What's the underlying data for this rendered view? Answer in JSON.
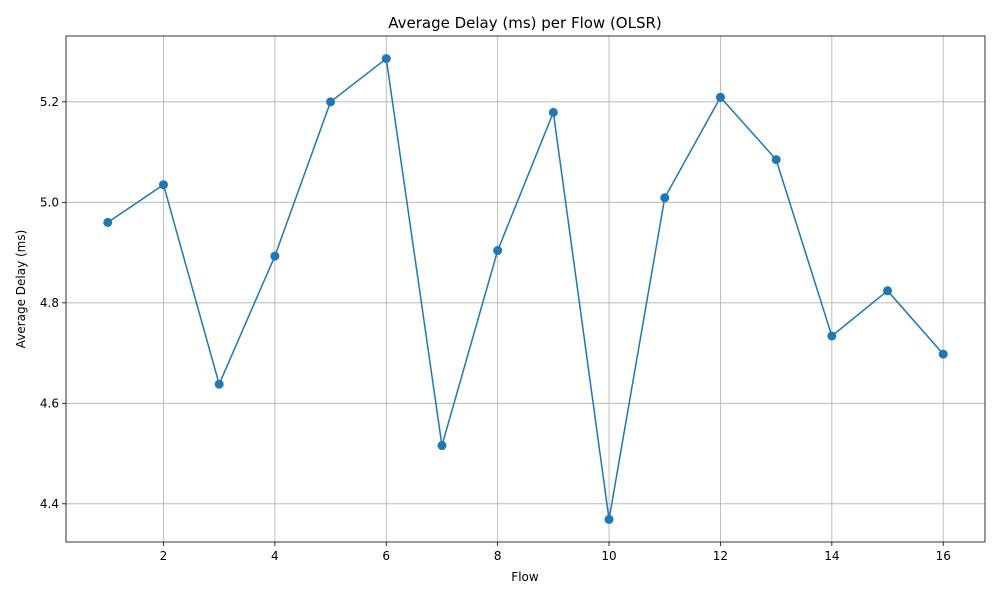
{
  "chart_data": {
    "type": "line",
    "title": "Average Delay (ms) per Flow (OLSR)",
    "xlabel": "Flow",
    "ylabel": "Average Delay (ms)",
    "x": [
      1,
      2,
      3,
      4,
      5,
      6,
      7,
      8,
      9,
      10,
      11,
      12,
      13,
      14,
      15,
      16
    ],
    "y": [
      4.96,
      5.035,
      4.638,
      4.893,
      5.2,
      5.286,
      4.516,
      4.904,
      5.179,
      4.369,
      5.009,
      5.209,
      5.085,
      4.734,
      4.824,
      4.698
    ],
    "xlim": [
      0.25,
      16.75
    ],
    "ylim": [
      4.324,
      5.331
    ],
    "xticks": [
      2,
      4,
      6,
      8,
      10,
      12,
      14,
      16
    ],
    "xtick_labels": [
      "2",
      "4",
      "6",
      "8",
      "10",
      "12",
      "14",
      "16"
    ],
    "yticks": [
      4.4,
      4.6,
      4.8,
      5.0,
      5.2
    ],
    "ytick_labels": [
      "4.4",
      "4.6",
      "4.8",
      "5.0",
      "5.2"
    ],
    "grid": true,
    "marker": "circle",
    "color": "#1f77b4"
  }
}
